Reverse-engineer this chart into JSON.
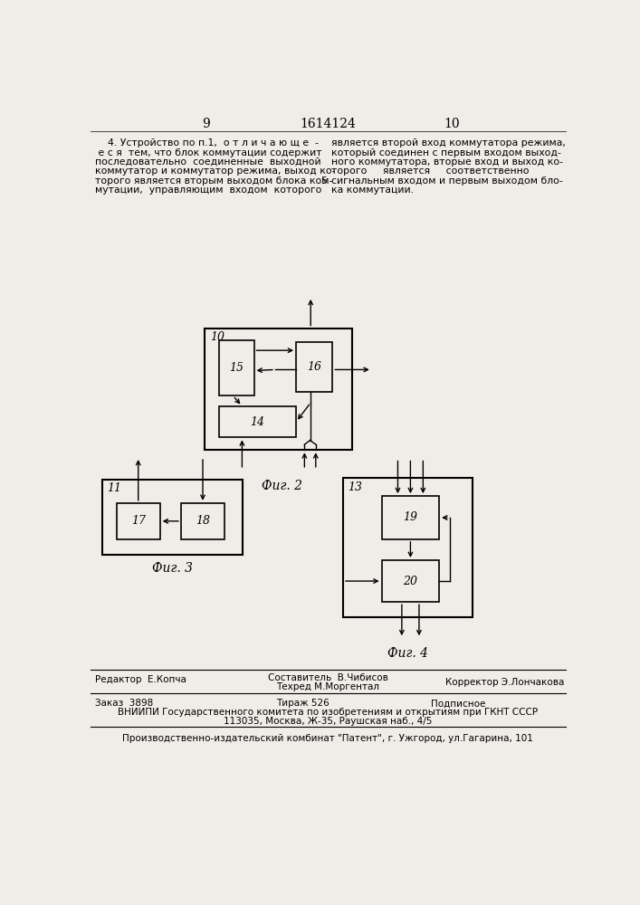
{
  "bg_color": "#f0ede8",
  "header_num_left": "9",
  "header_center": "1614124",
  "header_num_right": "10",
  "text_left_lines": [
    "    4. Устройство по п.1,  о т л и ч а ю щ е  -",
    " е с я  тем, что блок коммутации содержит",
    "последовательно  соединенные  выходной",
    "коммутатор и коммутатор режима, выход ко-",
    "торого является вторым выходом блока ком-",
    "мутации,  управляющим  входом  которого"
  ],
  "text_right_lines": [
    "является второй вход коммутатора режима,",
    "который соединен с первым входом выход-",
    "ного коммутатора, вторые вход и выход ко-",
    "торого     является     соответственно",
    "сигнальным входом и первым выходом бло-",
    "ка коммутации."
  ],
  "line_number_5": "5",
  "fig2_label": "10",
  "fig2_box15": "15",
  "fig2_box16": "16",
  "fig2_box14": "14",
  "fig2_caption": "Фиг. 2",
  "fig3_label": "11",
  "fig3_box17": "17",
  "fig3_box18": "18",
  "fig3_caption": "Фиг. 3",
  "fig4_label": "13",
  "fig4_box19": "19",
  "fig4_box20": "20",
  "fig4_caption": "Фиг. 4",
  "footer_editor": "Редактор  Е.Копча",
  "footer_compiler": "Составитель  В.Чибисов",
  "footer_tech": "Техред М.Моргентал",
  "footer_corrector": "Корректор Э.Лончакова",
  "footer_order": "Заказ  3898",
  "footer_copies": "Тираж 526",
  "footer_subscription": "Подписное",
  "footer_vniipи": "ВНИИПИ Государственного комитета по изобретениям и открытиям при ГКНТ СССР",
  "footer_address": "113035, Москва, Ж-35, Раушская наб., 4/5",
  "footer_patent": "Производственно-издательский комбинат \"Патент\", г. Ужгород, ул.Гагарина, 101"
}
